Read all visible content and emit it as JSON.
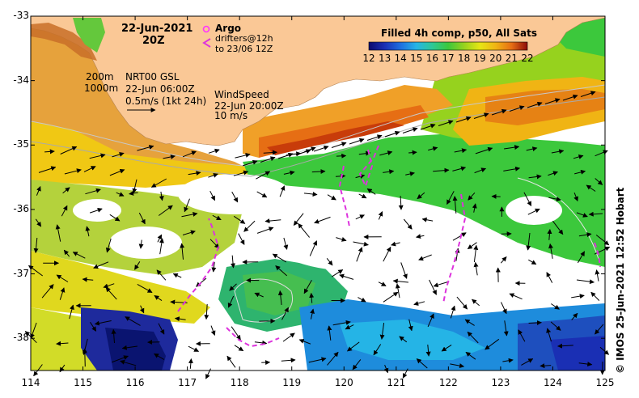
{
  "title": {
    "date": "22-Jun-2021",
    "hour": "20Z"
  },
  "argo": {
    "label": "Argo",
    "symbol_color": "#ff33ff"
  },
  "drifters": {
    "line1": "drifters@12h",
    "line2": "to 23/06 12Z",
    "symbol": "<",
    "color": "#dd33dd"
  },
  "bathymetry": {
    "contour1": "200m",
    "contour2": "1000m"
  },
  "currents": {
    "line1": "NRT00 GSL",
    "line2": "22-Jun 06:00Z",
    "line3": "0.5m/s (1kt 24h)"
  },
  "wind": {
    "line1": "WindSpeed",
    "line2": "22-Jun 20:00Z",
    "line3": "10 m/s"
  },
  "colorbar": {
    "title": "Filled 4h comp, p50, All Sats",
    "ticks": [
      "12",
      "13",
      "14",
      "15",
      "16",
      "17",
      "18",
      "19",
      "20",
      "21",
      "22"
    ],
    "colors": [
      "#0a0a6e",
      "#1a2fb4",
      "#1e6fe0",
      "#25b4e6",
      "#2ec896",
      "#3cc83c",
      "#96d21e",
      "#e6e614",
      "#f0b414",
      "#e66e14",
      "#c81e0a",
      "#8c0a0a"
    ]
  },
  "axes": {
    "x_ticks": [
      "114",
      "115",
      "116",
      "117",
      "118",
      "119",
      "120",
      "121",
      "122",
      "123",
      "124",
      "125"
    ],
    "y_ticks": [
      "-33",
      "-34",
      "-35",
      "-36",
      "-37",
      "-38"
    ],
    "xlim": [
      114,
      125
    ],
    "ylim": [
      -38.5,
      -33
    ]
  },
  "land_color": "#fac896",
  "credit": "© IMOS 25-Jun-2021 12:52 Hobart"
}
